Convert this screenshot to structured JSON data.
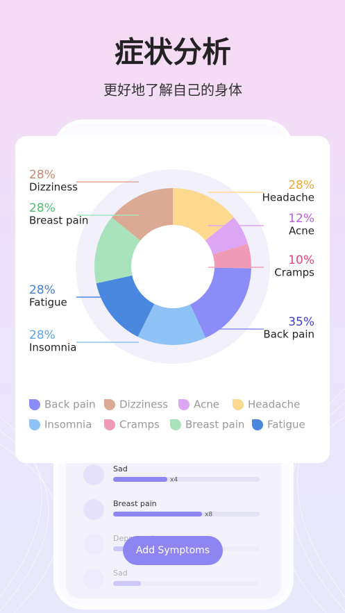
{
  "header": {
    "title": "症状分析",
    "subtitle": "更好地了解自己的身体"
  },
  "chart_data": {
    "type": "pie",
    "donut": true,
    "categories": [
      "Headache",
      "Acne",
      "Cramps",
      "Back pain",
      "Insomnia",
      "Fatigue",
      "Breast pain",
      "Dizziness"
    ],
    "values": [
      28,
      12,
      10,
      35,
      28,
      28,
      28,
      28
    ],
    "value_labels": [
      "28%",
      "12%",
      "10%",
      "35%",
      "28%",
      "28%",
      "28%",
      "28%"
    ],
    "colors": [
      "#fdd98f",
      "#dca6f5",
      "#f29bb8",
      "#8a8cf7",
      "#8fc3f7",
      "#4a88e0",
      "#a8e3bb",
      "#dba994"
    ],
    "label_colors": [
      "#e8a93a",
      "#b85fe0",
      "#e0457a",
      "#3b3dd6",
      "#5aa6ea",
      "#3f7fdb",
      "#4cbf6f",
      "#c9876e"
    ],
    "legend": [
      "Back pain",
      "Dizziness",
      "Acne",
      "Headache",
      "Insomnia",
      "Cramps",
      "Breast pain",
      "Fatigue"
    ]
  },
  "list": [
    {
      "label": "Sad",
      "count": "x4"
    },
    {
      "label": "Breast pain",
      "count": "x8"
    },
    {
      "label": "Depressed"
    },
    {
      "label": "Sad"
    }
  ],
  "button": "Add Symptoms"
}
